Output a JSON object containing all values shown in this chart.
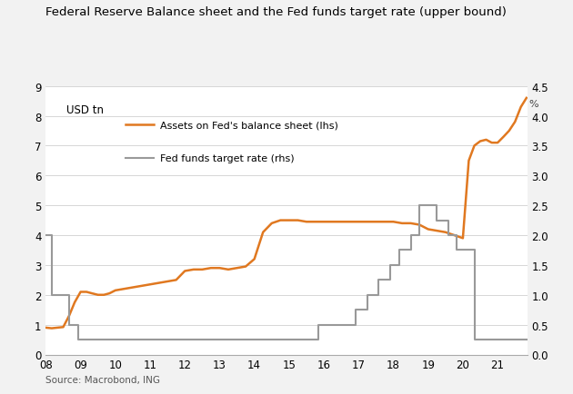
{
  "title": "Federal Reserve Balance sheet and the Fed funds target rate (upper bound)",
  "source": "Source: Macrobond, ING",
  "left_label": "USD tn",
  "right_label": "%",
  "left_ylim": [
    0,
    9
  ],
  "right_ylim": [
    0.0,
    4.5
  ],
  "left_yticks": [
    0,
    1,
    2,
    3,
    4,
    5,
    6,
    7,
    8,
    9
  ],
  "right_yticks": [
    0.0,
    0.5,
    1.0,
    1.5,
    2.0,
    2.5,
    3.0,
    3.5,
    4.0,
    4.5
  ],
  "xtick_labels": [
    "08",
    "09",
    "10",
    "11",
    "12",
    "13",
    "14",
    "15",
    "16",
    "17",
    "18",
    "19",
    "20",
    "21"
  ],
  "xlim": [
    2008.0,
    2021.85
  ],
  "balance_sheet": {
    "label": "Assets on Fed's balance sheet (lhs)",
    "color": "#E07820",
    "x": [
      2008.0,
      2008.17,
      2008.33,
      2008.5,
      2008.67,
      2008.83,
      2009.0,
      2009.17,
      2009.33,
      2009.5,
      2009.67,
      2009.83,
      2010.0,
      2010.25,
      2010.5,
      2010.75,
      2011.0,
      2011.25,
      2011.5,
      2011.75,
      2012.0,
      2012.25,
      2012.5,
      2012.75,
      2013.0,
      2013.25,
      2013.5,
      2013.75,
      2014.0,
      2014.25,
      2014.5,
      2014.75,
      2015.0,
      2015.25,
      2015.5,
      2015.75,
      2016.0,
      2016.25,
      2016.5,
      2016.75,
      2017.0,
      2017.25,
      2017.5,
      2017.75,
      2018.0,
      2018.25,
      2018.5,
      2018.75,
      2019.0,
      2019.25,
      2019.5,
      2019.75,
      2020.0,
      2020.17,
      2020.33,
      2020.5,
      2020.67,
      2020.83,
      2021.0,
      2021.17,
      2021.33,
      2021.5,
      2021.67,
      2021.83
    ],
    "y": [
      0.9,
      0.88,
      0.9,
      0.92,
      1.3,
      1.75,
      2.1,
      2.1,
      2.05,
      2.0,
      2.0,
      2.05,
      2.15,
      2.2,
      2.25,
      2.3,
      2.35,
      2.4,
      2.45,
      2.5,
      2.8,
      2.85,
      2.85,
      2.9,
      2.9,
      2.85,
      2.9,
      2.95,
      3.2,
      4.1,
      4.4,
      4.5,
      4.5,
      4.5,
      4.45,
      4.45,
      4.45,
      4.45,
      4.45,
      4.45,
      4.45,
      4.45,
      4.45,
      4.45,
      4.45,
      4.4,
      4.4,
      4.35,
      4.2,
      4.15,
      4.1,
      4.0,
      3.9,
      6.5,
      7.0,
      7.15,
      7.2,
      7.1,
      7.1,
      7.3,
      7.5,
      7.8,
      8.3,
      8.6
    ]
  },
  "fed_funds": {
    "label": "Fed funds target rate (rhs)",
    "color": "#999999",
    "x": [
      2008.0,
      2008.17,
      2008.17,
      2008.67,
      2008.67,
      2008.92,
      2008.92,
      2015.83,
      2015.83,
      2016.92,
      2016.92,
      2017.25,
      2017.25,
      2017.58,
      2017.58,
      2017.92,
      2017.92,
      2018.17,
      2018.17,
      2018.5,
      2018.5,
      2018.75,
      2018.75,
      2019.25,
      2019.25,
      2019.58,
      2019.58,
      2019.83,
      2019.83,
      2020.17,
      2020.17,
      2020.33,
      2020.33,
      2021.85
    ],
    "y": [
      2.0,
      2.0,
      1.0,
      1.0,
      0.5,
      0.5,
      0.25,
      0.25,
      0.5,
      0.5,
      0.75,
      0.75,
      1.0,
      1.0,
      1.25,
      1.25,
      1.5,
      1.5,
      1.75,
      1.75,
      2.0,
      2.0,
      2.5,
      2.5,
      2.25,
      2.25,
      2.0,
      2.0,
      1.75,
      1.75,
      1.75,
      1.75,
      0.25,
      0.25
    ]
  },
  "background_color": "#f2f2f2",
  "plot_background": "#ffffff"
}
